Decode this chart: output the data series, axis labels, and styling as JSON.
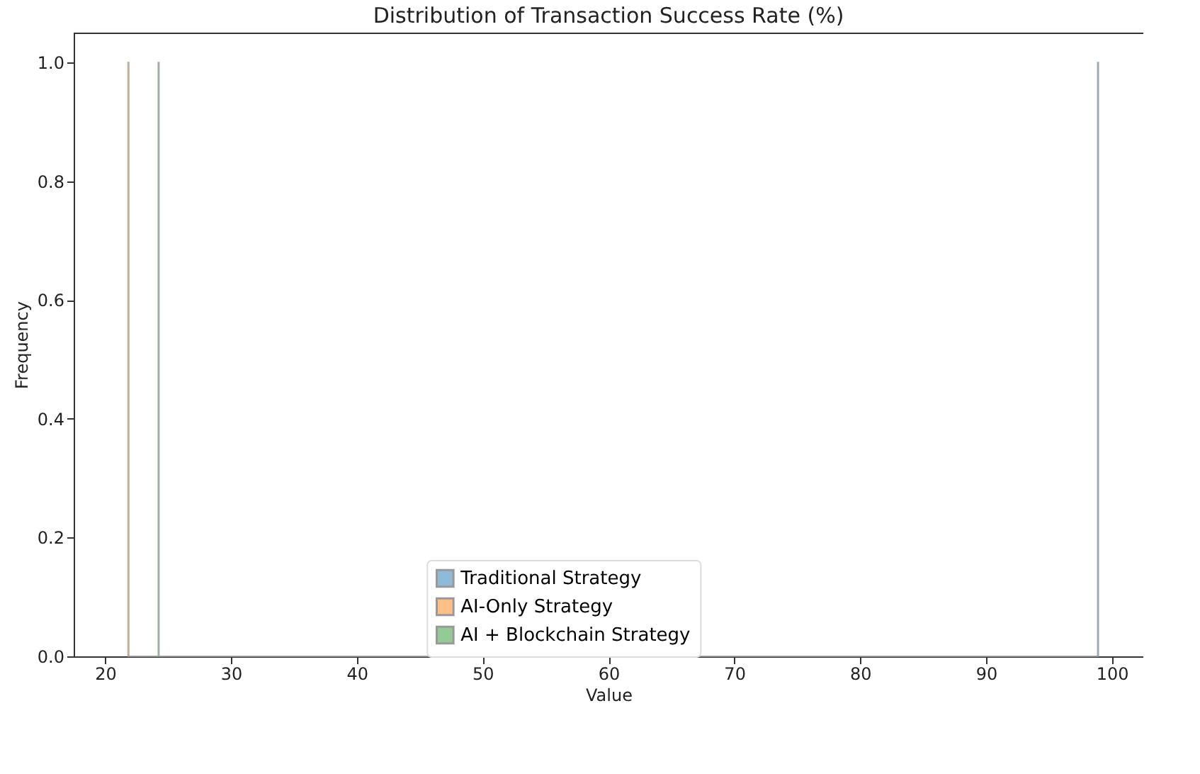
{
  "chart_data": {
    "type": "histogram",
    "title": "Distribution of Transaction Success Rate (%)",
    "xlabel": "Value",
    "ylabel": "Frequency",
    "bins": [
      21.8,
      21.9,
      24.2,
      24.3,
      98.85,
      98.95
    ],
    "series": [
      {
        "name": "Traditional Strategy",
        "color": "#8fbbd9",
        "values": [
          0,
          0,
          0,
          0,
          1
        ]
      },
      {
        "name": "AI-Only Strategy",
        "color": "#ffbf86",
        "values": [
          1,
          0,
          0,
          0,
          0
        ]
      },
      {
        "name": "AI + Blockchain Strategy",
        "color": "#94cb94",
        "values": [
          0,
          0,
          1,
          0,
          0
        ]
      }
    ],
    "xlim": [
      17.5,
      102.5
    ],
    "xticks": [
      20,
      30,
      40,
      50,
      60,
      70,
      80,
      90,
      100
    ],
    "ylim": [
      0,
      1.05
    ],
    "yticks": [
      {
        "value": 0,
        "label": "0.0"
      },
      0.2,
      0.4,
      0.6,
      0.8,
      {
        "value": 1,
        "label": "1.0"
      }
    ],
    "grid": false,
    "legend": "bottom"
  }
}
